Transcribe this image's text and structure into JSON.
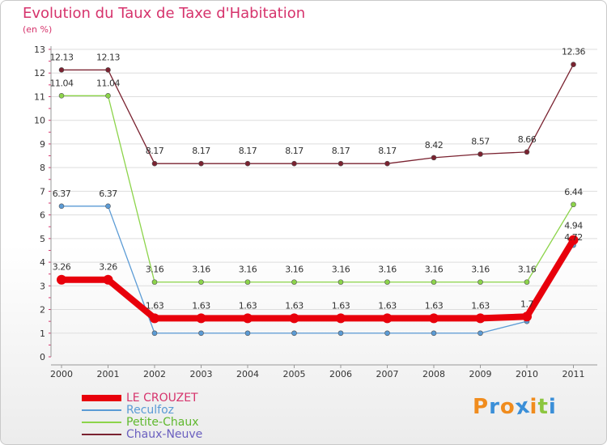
{
  "title": "Evolution du Taux de Taxe d'Habitation",
  "unit_label": "(en %)",
  "logo": {
    "letters": [
      "P",
      "r",
      "o",
      "x",
      "i",
      "t",
      "i"
    ],
    "colors": [
      "#f08c1e",
      "#3b8fd8",
      "#f08c1e",
      "#3b8fd8",
      "#f08c1e",
      "#8cc63f",
      "#3b8fd8"
    ]
  },
  "colors": {
    "title": "#d6336c",
    "axis": "#999999",
    "axis_red": "#d6336c",
    "grid": "#dddddd",
    "tick_text": "#333333",
    "value_text": "#333333"
  },
  "chart_data": {
    "type": "line",
    "title": "Evolution du Taux de Taxe d'Habitation",
    "ylabel": "(en %)",
    "xlabel": "",
    "ylim": [
      0,
      13
    ],
    "yticks": [
      "0",
      "1",
      "2",
      "3",
      "4",
      "5",
      "6",
      "7",
      "8",
      "9",
      "10",
      "11",
      "12",
      "13"
    ],
    "x": [
      "2000",
      "2001",
      "2002",
      "2003",
      "2004",
      "2005",
      "2006",
      "2007",
      "2008",
      "2009",
      "2010",
      "2011"
    ],
    "grid": "horizontal",
    "legend_position": "bottom-left",
    "series": [
      {
        "name": "LE CROUZET",
        "color": "#e8000b",
        "values": [
          3.26,
          3.26,
          1.63,
          1.63,
          1.63,
          1.63,
          1.63,
          1.63,
          1.63,
          1.63,
          1.7,
          4.94
        ],
        "labels": [
          "3.26",
          "3.26",
          "1.63",
          "1.63",
          "1.63",
          "1.63",
          "1.63",
          "1.63",
          "1.63",
          "1.63",
          "1.7",
          "4.94"
        ]
      },
      {
        "name": "Reculfoz",
        "color": "#5b9bd5",
        "values": [
          6.37,
          6.37,
          1.0,
          1.0,
          1.0,
          1.0,
          1.0,
          1.0,
          1.0,
          1.0,
          1.5,
          4.72
        ],
        "labels": [
          "6.37",
          "6.37",
          "",
          "",
          "",
          "",
          "",
          "",
          "",
          "",
          "",
          "4.72"
        ]
      },
      {
        "name": "Petite-Chaux",
        "color": "#8cd44a",
        "values": [
          11.04,
          11.04,
          3.16,
          3.16,
          3.16,
          3.16,
          3.16,
          3.16,
          3.16,
          3.16,
          3.16,
          6.44
        ],
        "labels": [
          "11.04",
          "11.04",
          "3.16",
          "3.16",
          "3.16",
          "3.16",
          "3.16",
          "3.16",
          "3.16",
          "3.16",
          "3.16",
          "6.44"
        ]
      },
      {
        "name": "Chaux-Neuve",
        "color": "#7a2230",
        "values": [
          12.13,
          12.13,
          8.17,
          8.17,
          8.17,
          8.17,
          8.17,
          8.17,
          8.42,
          8.57,
          8.66,
          12.36
        ],
        "labels": [
          "12.13",
          "12.13",
          "8.17",
          "8.17",
          "8.17",
          "8.17",
          "8.17",
          "8.17",
          "8.42",
          "8.57",
          "8.66",
          "12.36"
        ]
      }
    ]
  }
}
